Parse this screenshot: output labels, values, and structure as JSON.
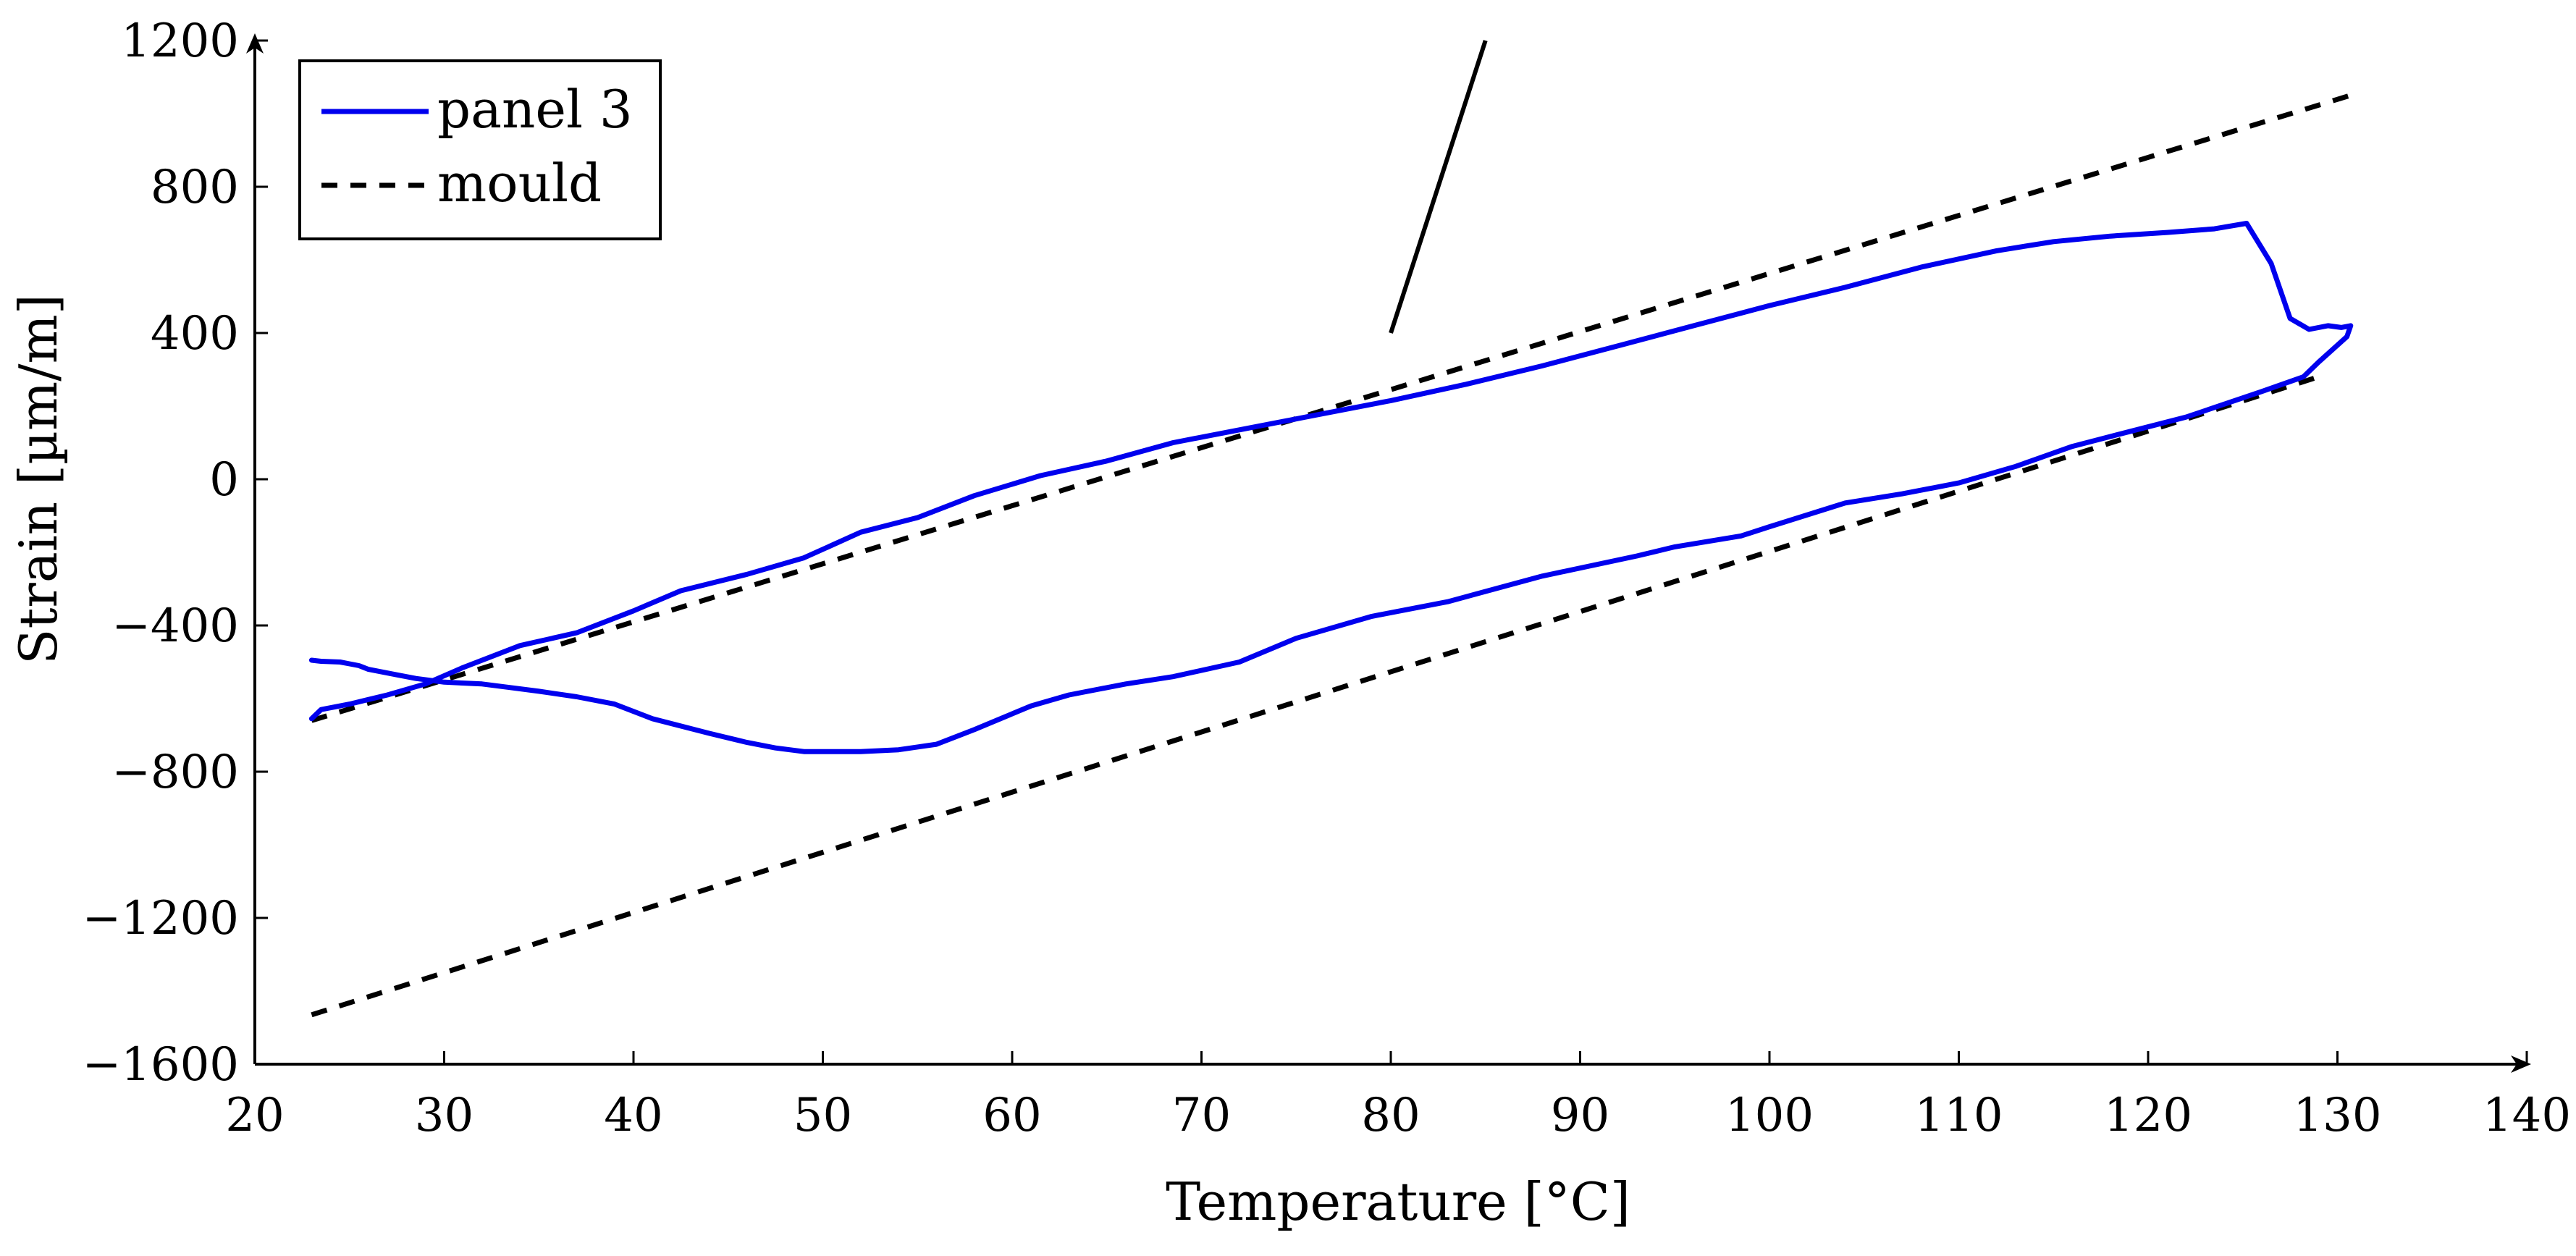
{
  "chart_data": {
    "type": "line",
    "xlabel": "Temperature [°C]",
    "ylabel": "Strain [µm/m]",
    "xlim": [
      20,
      140
    ],
    "ylim": [
      -1600,
      1200
    ],
    "xticks": [
      20,
      30,
      40,
      50,
      60,
      70,
      80,
      90,
      100,
      110,
      120,
      130,
      140
    ],
    "yticks": [
      -1600,
      -1200,
      -800,
      -400,
      0,
      400,
      800,
      1200
    ],
    "ytick_labels": [
      "−1600",
      "−1200",
      "−800",
      "−400",
      "0",
      "400",
      "800",
      "1200"
    ],
    "legend_position": "top-left",
    "colors": {
      "panel": "#0000ee",
      "mould": "#000000"
    },
    "series": [
      {
        "name": "panel 3",
        "style": "solid",
        "color": "#0000ee",
        "points": [
          [
            23.0,
            -655
          ],
          [
            23.5,
            -630
          ],
          [
            25,
            -615
          ],
          [
            27,
            -590
          ],
          [
            29,
            -560
          ],
          [
            31,
            -515
          ],
          [
            34,
            -455
          ],
          [
            37,
            -420
          ],
          [
            40,
            -360
          ],
          [
            42.5,
            -305
          ],
          [
            46,
            -260
          ],
          [
            49,
            -215
          ],
          [
            52,
            -145
          ],
          [
            55,
            -105
          ],
          [
            58,
            -45
          ],
          [
            61.5,
            10
          ],
          [
            65,
            50
          ],
          [
            68.5,
            100
          ],
          [
            72,
            135
          ],
          [
            76,
            175
          ],
          [
            80,
            215
          ],
          [
            84,
            260
          ],
          [
            88,
            310
          ],
          [
            92,
            365
          ],
          [
            96,
            420
          ],
          [
            100,
            475
          ],
          [
            104,
            525
          ],
          [
            108,
            580
          ],
          [
            112,
            625
          ],
          [
            115,
            650
          ],
          [
            118,
            665
          ],
          [
            121,
            675
          ],
          [
            123.5,
            685
          ],
          [
            125.2,
            700
          ],
          [
            126.5,
            590
          ],
          [
            127.5,
            440
          ],
          [
            128.5,
            410
          ],
          [
            129.5,
            420
          ],
          [
            130.2,
            415
          ],
          [
            130.7,
            420
          ],
          [
            130.5,
            390
          ],
          [
            129,
            320
          ],
          [
            128.2,
            280
          ],
          [
            126,
            240
          ],
          [
            122,
            170
          ],
          [
            119,
            130
          ],
          [
            116,
            90
          ],
          [
            113,
            35
          ],
          [
            110,
            -10
          ],
          [
            107,
            -40
          ],
          [
            104,
            -65
          ],
          [
            100,
            -130
          ],
          [
            98.5,
            -155
          ],
          [
            95,
            -185
          ],
          [
            93,
            -210
          ],
          [
            88,
            -265
          ],
          [
            83,
            -335
          ],
          [
            79,
            -375
          ],
          [
            75,
            -435
          ],
          [
            72,
            -500
          ],
          [
            68.5,
            -540
          ],
          [
            66,
            -560
          ],
          [
            63,
            -590
          ],
          [
            61,
            -620
          ],
          [
            58,
            -685
          ],
          [
            56,
            -725
          ],
          [
            54,
            -740
          ],
          [
            52,
            -745
          ],
          [
            49,
            -745
          ],
          [
            47.5,
            -735
          ],
          [
            46,
            -720
          ],
          [
            44,
            -695
          ],
          [
            41,
            -655
          ],
          [
            39,
            -615
          ],
          [
            37,
            -595
          ],
          [
            35,
            -580
          ],
          [
            33.5,
            -570
          ],
          [
            32,
            -560
          ],
          [
            30,
            -555
          ],
          [
            28.5,
            -545
          ],
          [
            27.5,
            -535
          ],
          [
            26,
            -520
          ],
          [
            25.5,
            -510
          ],
          [
            25,
            -505
          ],
          [
            24.5,
            -500
          ],
          [
            23.5,
            -498
          ],
          [
            23.0,
            -495
          ]
        ]
      },
      {
        "name": "mould",
        "style": "dashed",
        "color": "#000000",
        "segments": [
          [
            [
              23,
              -660
            ],
            [
              131,
              1055
            ]
          ],
          [
            [
              23,
              -1465
            ],
            [
              129,
              280
            ]
          ]
        ]
      }
    ],
    "annotations": [
      {
        "type": "solid-line",
        "color": "#000000",
        "points": [
          [
            80,
            400
          ],
          [
            85,
            1200
          ]
        ]
      }
    ]
  }
}
